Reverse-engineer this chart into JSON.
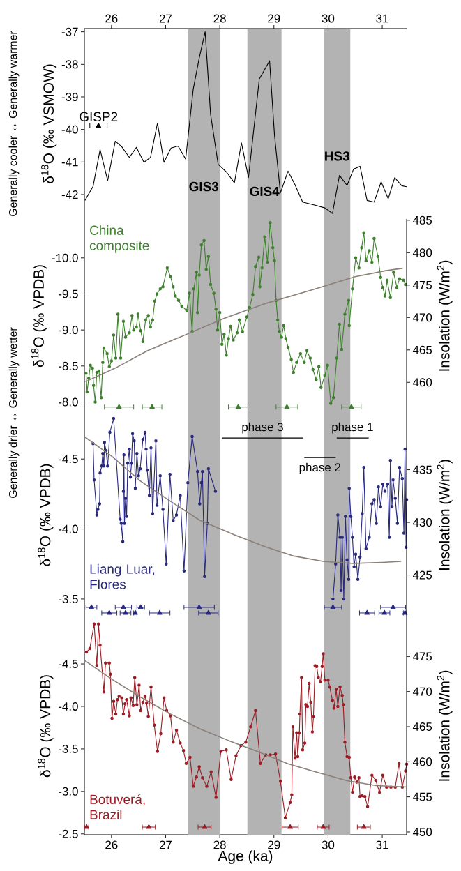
{
  "chart_data": [
    {
      "type": "line",
      "ylabel": "δ$^{18}$O (‰ VSMOW)",
      "xlim": [
        25.5,
        31.45
      ],
      "xticks": [
        26,
        27,
        28,
        29,
        30,
        31
      ],
      "ylim": [
        -42.75,
        -36.9
      ],
      "yticks": [
        -37,
        -38,
        -39,
        -40,
        -41,
        -42
      ],
      "annotations": [
        "Generally cooler ↔ Generally warmer",
        {
          "text": "GISP2",
          "x": 25.76,
          "y": -39.89
        }
      ],
      "bands": [
        {
          "axis": "x",
          "from": 27.41,
          "to": 28.0,
          "label": "GIS3",
          "color": "#b3b3b3"
        },
        {
          "axis": "x",
          "from": 28.51,
          "to": 29.14,
          "label": "GIS4",
          "color": "#b3b3b3"
        },
        {
          "axis": "x",
          "from": 29.92,
          "to": 30.41,
          "label": "HS3",
          "color": "#b3b3b3"
        }
      ],
      "series": [
        {
          "color": "#000000",
          "marker": "none",
          "x": [
            25.51,
            25.66,
            25.79,
            25.93,
            26.07,
            26.19,
            26.33,
            26.46,
            26.6,
            26.72,
            26.85,
            26.97,
            27.1,
            27.23,
            27.37,
            27.51,
            27.62,
            27.73,
            27.83,
            27.97,
            28.13,
            28.27,
            28.4,
            28.53,
            28.73,
            28.92,
            29.01,
            29.12,
            29.26,
            29.39,
            29.53,
            29.75,
            29.94,
            30.08,
            30.21,
            30.35,
            30.47,
            30.59,
            30.72,
            30.85,
            30.98,
            31.11,
            31.23,
            31.36,
            31.45
          ],
          "values": [
            -42.18,
            -41.75,
            -40.62,
            -41.57,
            -40.36,
            -40.53,
            -40.86,
            -40.55,
            -41.01,
            -40.86,
            -39.8,
            -41.01,
            -40.57,
            -40.51,
            -40.91,
            -38.76,
            -37.81,
            -37.0,
            -39.53,
            -41.07,
            -41.32,
            -41.64,
            -40.41,
            -41.48,
            -38.45,
            -37.89,
            -40.16,
            -41.95,
            -41.28,
            -41.7,
            -42.23,
            -42.32,
            -42.41,
            -42.58,
            -41.41,
            -41.72,
            -41.22,
            -41.13,
            -42.18,
            -42.23,
            -41.61,
            -42.13,
            -41.48,
            -41.73,
            -41.76
          ]
        },
        {
          "type": "scatter",
          "color": "#000000",
          "marker": "triangle",
          "x": [
            25.76
          ],
          "values": [
            -39.89
          ],
          "xerrors": [
            0.16
          ]
        }
      ]
    },
    {
      "type": "line",
      "ylabel": "δ$^{18}$O (‰ VPDB)",
      "y2label": "Insolation (W/m$^{2}$)",
      "xlim": [
        25.5,
        31.45
      ],
      "ylim": [
        -7.85,
        -10.54
      ],
      "yticks": [
        {
          "value": -10,
          "label": "-10.0"
        },
        -9.5,
        {
          "value": -9,
          "label": "-9.0"
        },
        -8.5,
        {
          "value": -8,
          "label": "-8.0"
        }
      ],
      "y2lim": [
        455.3,
        485.2
      ],
      "y2ticks": [
        460,
        465,
        470,
        475,
        480,
        485
      ],
      "tick_labels": "y",
      "bands": [
        {
          "axis": "x",
          "from": 27.41,
          "to": 28.0,
          "color": "#b3b3b3"
        },
        {
          "axis": "x",
          "from": 28.51,
          "to": 29.14,
          "color": "#b3b3b3"
        },
        {
          "axis": "x",
          "from": 29.92,
          "to": 30.41,
          "color": "#b3b3b3"
        }
      ],
      "series": [
        {
          "name": "China composite",
          "color": "#3e7f2e",
          "marker": "circle",
          "x": [
            25.53,
            25.55,
            25.58,
            25.61,
            25.65,
            25.67,
            25.7,
            25.73,
            25.77,
            25.81,
            25.84,
            25.86,
            25.92,
            25.96,
            26.0,
            26.04,
            26.08,
            26.12,
            26.17,
            26.22,
            26.26,
            26.33,
            26.38,
            26.41,
            26.46,
            26.49,
            26.54,
            26.58,
            26.63,
            26.68,
            26.72,
            26.76,
            26.8,
            26.84,
            26.9,
            26.95,
            27.03,
            27.09,
            27.14,
            27.18,
            27.24,
            27.3,
            27.39,
            27.44,
            27.49,
            27.52,
            27.57,
            27.59,
            27.62,
            27.66,
            27.71,
            27.75,
            27.79,
            27.83,
            27.89,
            27.93,
            27.96,
            28.0,
            28.04,
            28.08,
            28.12,
            28.16,
            28.2,
            28.25,
            28.32,
            28.36,
            28.42,
            28.5,
            28.55,
            28.61,
            28.66,
            28.72,
            28.74,
            28.78,
            28.83,
            28.88,
            28.93,
            28.98,
            29.01,
            29.04,
            29.07,
            29.1,
            29.14,
            29.18,
            29.22,
            29.26,
            29.32,
            29.36,
            29.42,
            29.49,
            29.56,
            29.61,
            29.67,
            29.72,
            29.78,
            29.83,
            29.87,
            29.94,
            29.99,
            30.05,
            30.1,
            30.16,
            30.21,
            30.25,
            30.31,
            30.38,
            30.39,
            30.45,
            30.51,
            30.57,
            30.62,
            30.66,
            30.7,
            30.76,
            30.81,
            30.85,
            30.92,
            30.97,
            31.01,
            31.05,
            31.09,
            31.15,
            31.21,
            31.27,
            31.32,
            31.39,
            31.43
          ],
          "values": [
            -8.4,
            -8.14,
            -8.33,
            -8.51,
            -8.47,
            -8.23,
            -8.0,
            -8.41,
            -8.43,
            -8.06,
            -8.55,
            -8.75,
            -8.67,
            -8.49,
            -8.57,
            -8.93,
            -8.61,
            -9.22,
            -8.61,
            -9.12,
            -8.9,
            -8.96,
            -9.2,
            -9.0,
            -9.04,
            -9.22,
            -8.99,
            -8.84,
            -9.14,
            -9.2,
            -9.04,
            -9.14,
            -9.4,
            -9.5,
            -9.57,
            -9.6,
            -9.86,
            -9.74,
            -9.6,
            -9.47,
            -9.41,
            -9.33,
            -9.27,
            -9.51,
            -8.98,
            -9.57,
            -9.8,
            -9.24,
            -9.76,
            -10.18,
            -10.24,
            -9.84,
            -10.02,
            -9.63,
            -9.51,
            -9.29,
            -9.0,
            -9.24,
            -8.8,
            -8.94,
            -8.65,
            -8.88,
            -9.05,
            -8.86,
            -8.96,
            -9.14,
            -8.98,
            -9.18,
            -9.31,
            -9.49,
            -9.88,
            -10.01,
            -9.6,
            -9.86,
            -10.29,
            -9.94,
            -10.49,
            -10.14,
            -9.96,
            -9.41,
            -9.14,
            -8.98,
            -8.9,
            -9.06,
            -8.88,
            -8.76,
            -8.59,
            -8.41,
            -8.55,
            -8.67,
            -8.55,
            -8.71,
            -8.61,
            -8.45,
            -8.31,
            -8.49,
            -8.2,
            -8.37,
            -8.51,
            -7.98,
            -8.06,
            -8.61,
            -9.08,
            -8.73,
            -9.22,
            -9.41,
            -9.06,
            -9.57,
            -10.0,
            -9.86,
            -10.14,
            -10.35,
            -9.96,
            -10.1,
            -9.94,
            -10.27,
            -10.02,
            -9.73,
            -9.59,
            -9.47,
            -9.69,
            -9.45,
            -9.8,
            -9.59,
            -9.71,
            -9.69,
            -9.63
          ]
        },
        {
          "type": "line",
          "axis": "y2",
          "color": "#8b7f78",
          "marker": "none",
          "x": [
            25.52,
            26.07,
            26.67,
            27.44,
            28.09,
            28.86,
            29.68,
            30.5,
            31.05,
            31.38
          ],
          "values": [
            460.1,
            462.2,
            464.9,
            467.6,
            469.9,
            472.2,
            474.2,
            476.3,
            477.2,
            477.6
          ]
        },
        {
          "type": "scatter",
          "color": "#3e7f2e",
          "marker": "triangle",
          "x": [
            26.14,
            26.75,
            28.34,
            29.24,
            30.43
          ],
          "values": [
            -7.93,
            -7.93,
            -7.93,
            -7.93,
            -7.93
          ],
          "xerrors": [
            0.27,
            0.18,
            0.18,
            0.2,
            0.18
          ]
        }
      ]
    },
    {
      "type": "line",
      "ylabel": "δ$^{18}$O (‰ VPDB)",
      "y2label": "Insolation (W/m$^{2}$)",
      "xlim": [
        25.5,
        31.45
      ],
      "ylim": [
        -3.37,
        -4.83
      ],
      "yticks": [
        -4.5,
        {
          "value": -4,
          "label": "-4.0"
        },
        -3.5
      ],
      "y2lim": [
        421,
        440.4
      ],
      "y2ticks": [
        425,
        430,
        435
      ],
      "tick_labels": "y",
      "annotations": [
        "Generally drier ↔ Generally wetter",
        {
          "text": "phase 3",
          "x": 28.79,
          "y": -4.65
        },
        {
          "text": "phase 2",
          "x": 29.85,
          "y": -4.51
        },
        {
          "text": "phase 1",
          "x": 30.45,
          "y": -4.65
        }
      ],
      "bands": [
        {
          "axis": "x",
          "from": 27.41,
          "to": 28.0,
          "color": "#b3b3b3"
        },
        {
          "axis": "x",
          "from": 28.51,
          "to": 29.14,
          "color": "#b3b3b3"
        },
        {
          "axis": "x",
          "from": 29.92,
          "to": 30.41,
          "color": "#b3b3b3"
        }
      ],
      "series": [
        {
          "name": "Liang Luar, Flores",
          "color": "#28287c",
          "marker": "circle",
          "x": [
            25.66,
            25.68,
            25.73,
            25.75,
            25.78,
            25.79,
            25.82,
            25.84,
            25.86,
            25.87,
            25.9,
            25.93,
            25.97,
            26.04,
            26.16,
            26.18,
            26.21,
            26.22,
            26.23,
            26.24,
            26.26,
            26.28,
            26.3,
            26.33,
            26.35,
            26.37,
            26.39,
            26.42,
            26.44,
            26.47,
            26.5,
            26.53,
            26.58,
            26.62,
            26.64,
            26.66,
            26.7,
            26.73,
            26.76,
            26.82,
            26.84,
            26.9,
            26.95,
            27.01,
            27.08,
            27.14,
            27.2,
            27.27,
            27.34,
            27.41,
            27.49,
            27.59,
            27.63,
            27.66,
            27.68,
            27.72,
            27.77,
            27.79,
            27.92,
            29.0,
            30.09,
            30.14,
            30.18,
            30.22,
            30.24,
            30.26,
            30.29,
            30.32,
            30.35,
            30.38,
            30.39,
            30.42,
            30.45,
            30.48,
            30.51,
            30.55,
            30.59,
            30.63,
            30.66,
            30.7,
            30.76,
            30.81,
            30.85,
            30.89,
            30.93,
            30.97,
            31.01,
            31.05,
            31.1,
            31.13,
            31.15,
            31.18,
            31.2,
            31.24,
            31.28,
            31.32,
            31.37,
            31.4,
            31.42,
            31.44,
            31.45
          ],
          "values": [
            -4.61,
            -4.35,
            -4.1,
            -4.14,
            -4.18,
            -4.4,
            -4.45,
            -4.54,
            -4.45,
            -4.62,
            -4.56,
            -4.45,
            -4.69,
            -4.79,
            -4.07,
            -4.04,
            -3.91,
            -4.27,
            -4.53,
            -4.04,
            -4.22,
            -4.09,
            -4.47,
            -4.57,
            -4.37,
            -4.47,
            -4.68,
            -4.63,
            -4.29,
            -4.54,
            -4.38,
            -4.43,
            -4.64,
            -4.69,
            -4.57,
            -4.42,
            -4.24,
            -4.58,
            -4.11,
            -4.63,
            -4.17,
            -4.38,
            -4.14,
            -3.75,
            -4.39,
            -4.06,
            -4.1,
            -4.24,
            -3.7,
            -4.33,
            -4.66,
            -4.41,
            -4.18,
            -4.33,
            -4.41,
            -3.66,
            -4.04,
            -4.43,
            -4.27,
            null,
            -3.5,
            -3.75,
            -4.1,
            -3.94,
            -3.56,
            -3.94,
            -3.5,
            -4.09,
            -3.78,
            -3.64,
            -4.29,
            -4.09,
            -3.94,
            -3.73,
            -3.82,
            -3.64,
            -3.8,
            -4.11,
            -4.44,
            -3.86,
            -3.94,
            -4.18,
            -4.21,
            -4.04,
            -4.3,
            -4.16,
            -4.32,
            -4.27,
            -4.32,
            -3.94,
            -4.49,
            -4.16,
            -4.35,
            -4.22,
            -4.04,
            -4.44,
            -4.36,
            -3.97,
            -4.57,
            -3.87,
            -4.21
          ]
        },
        {
          "type": "line",
          "axis": "y2",
          "color": "#8b7f78",
          "marker": "none",
          "x": [
            25.51,
            26.0,
            26.54,
            27.09,
            27.63,
            28.28,
            28.83,
            29.37,
            29.91,
            30.46,
            31.0,
            31.35
          ],
          "values": [
            438.1,
            436.3,
            433.9,
            432.0,
            430.2,
            428.8,
            427.7,
            426.8,
            426.3,
            426.1,
            426.2,
            426.3
          ]
        },
        {
          "type": "scatter",
          "color": "#28287c",
          "marker": "triangle",
          "x": [
            25.63,
            26.22,
            26.54,
            27.62,
            30.09,
            31.2
          ],
          "values": [
            -3.44,
            -3.44,
            -3.44,
            -3.44,
            -3.44,
            -3.44
          ],
          "xerrors": [
            0.1,
            0.15,
            0.07,
            0.28,
            0.16,
            0.23
          ]
        },
        {
          "type": "scatter",
          "color": "#28287c",
          "marker": "triangle",
          "x": [
            25.96,
            26.26,
            26.44,
            26.89,
            27.79,
            30.72,
            31.04,
            31.42
          ],
          "values": [
            -3.4,
            -3.4,
            -3.4,
            -3.4,
            -3.4,
            -3.4,
            -3.4,
            -3.4
          ],
          "xerrors": [
            0.14,
            0.1,
            0.03,
            0.19,
            0.18,
            0.14,
            0.1,
            0.03
          ]
        },
        {
          "type": "line",
          "color": "#000000",
          "marker": "none",
          "x": [
            28.04,
            29.54,
            29.545,
            29.56,
            30.14,
            30.15,
            30.16,
            30.75
          ],
          "values": [
            -4.65,
            -4.65,
            null,
            -4.51,
            -4.51,
            null,
            -4.65,
            -4.65
          ]
        }
      ]
    },
    {
      "type": "line",
      "xlabel": "Age (ka)",
      "ylabel": "δ$^{18}$O (‰ VPDB)",
      "y2label": "Insolation (W/m$^{2}$)",
      "xlim": [
        25.5,
        31.45
      ],
      "xticks": [
        26,
        27,
        28,
        29,
        30,
        31
      ],
      "ylim": [
        -2.49,
        -5.05
      ],
      "yticks": [
        -4.5,
        {
          "value": -4,
          "label": "-4.0"
        },
        -3.5,
        {
          "value": -3,
          "label": "-3.0"
        },
        -2.5
      ],
      "y2lim": [
        449.6,
        480.6
      ],
      "y2ticks": [
        450,
        455,
        460,
        465,
        470,
        475
      ],
      "bands": [
        {
          "axis": "x",
          "from": 27.41,
          "to": 28.0,
          "color": "#b3b3b3"
        },
        {
          "axis": "x",
          "from": 28.51,
          "to": 29.14,
          "color": "#b3b3b3"
        },
        {
          "axis": "x",
          "from": 29.92,
          "to": 30.41,
          "color": "#b3b3b3"
        }
      ],
      "series": [
        {
          "name": "Botuverá, Brazil",
          "color": "#9b1c24",
          "marker": "circle",
          "x": [
            25.54,
            25.6,
            25.68,
            25.73,
            25.76,
            25.79,
            25.86,
            25.89,
            25.96,
            25.98,
            26.01,
            26.04,
            26.08,
            26.11,
            26.14,
            26.19,
            26.22,
            26.25,
            26.28,
            26.33,
            26.36,
            26.4,
            26.43,
            26.47,
            26.51,
            26.54,
            26.58,
            26.62,
            26.65,
            26.68,
            26.73,
            26.79,
            26.85,
            26.91,
            26.97,
            27.02,
            27.09,
            27.14,
            27.2,
            27.27,
            27.33,
            27.38,
            27.45,
            27.51,
            27.57,
            27.62,
            27.68,
            27.76,
            27.84,
            27.93,
            28.02,
            28.12,
            28.21,
            28.3,
            28.39,
            28.48,
            28.57,
            28.66,
            28.75,
            28.85,
            28.93,
            29.03,
            29.12,
            29.21,
            29.3,
            29.33,
            29.35,
            29.39,
            29.42,
            29.44,
            29.47,
            29.48,
            29.51,
            29.53,
            29.57,
            29.59,
            29.62,
            29.65,
            29.68,
            29.71,
            29.73,
            29.76,
            29.79,
            29.82,
            29.86,
            29.89,
            29.91,
            29.94,
            30.0,
            30.03,
            30.08,
            30.11,
            30.15,
            30.18,
            30.22,
            30.26,
            30.28,
            30.31,
            30.35,
            30.39,
            30.42,
            30.45,
            30.49,
            30.53,
            30.57,
            30.59,
            30.63,
            30.68,
            30.73,
            30.81,
            30.88,
            30.95,
            31.01,
            31.08,
            31.16,
            31.24,
            31.31,
            31.37,
            31.43,
            31.45
          ],
          "values": [
            -4.64,
            -4.68,
            -4.97,
            -4.48,
            -4.97,
            -4.72,
            -4.17,
            -4.51,
            -4.51,
            -4.38,
            -3.86,
            -4.06,
            -3.91,
            -4.08,
            -4.12,
            -4.1,
            -3.91,
            -4.03,
            -4.08,
            -3.89,
            -4.1,
            -4.01,
            -4.34,
            -4.02,
            -4.25,
            -3.95,
            -4.05,
            -4.12,
            -4.04,
            -3.88,
            -4.23,
            -3.78,
            -3.47,
            -3.68,
            -4.1,
            -3.95,
            -3.89,
            -3.58,
            -3.72,
            -3.57,
            -3.48,
            -3.33,
            -3.4,
            -3.06,
            -3.17,
            -3.29,
            -3.16,
            -3.06,
            -3.23,
            -2.93,
            -3.47,
            -3.49,
            -3.14,
            -3.42,
            -3.54,
            -3.58,
            -3.76,
            -3.95,
            -3.33,
            -3.43,
            -3.43,
            -3.44,
            -3.12,
            -2.69,
            -2.87,
            -2.96,
            -3.76,
            -3.39,
            -3.69,
            -3.41,
            -3.69,
            -3.91,
            -4.34,
            -3.49,
            -3.57,
            -4.02,
            -4.0,
            -4.27,
            -4.05,
            -3.7,
            -3.88,
            -4.48,
            -4.47,
            -4.34,
            -4.29,
            -4.47,
            -4.62,
            -4.31,
            -4.31,
            -4.23,
            -4.07,
            -3.98,
            -4.2,
            -4.0,
            -4.23,
            -4.13,
            -4.02,
            -3.58,
            -3.41,
            -3.4,
            -3.16,
            -2.99,
            -3.17,
            -3.11,
            -3.16,
            -2.94,
            -2.95,
            -2.94,
            -2.82,
            -3.19,
            -3.13,
            -2.99,
            -3.19,
            -3.05,
            -3.05,
            -3.05,
            -3.33,
            -3.05,
            -3.24,
            -3.32
          ]
        },
        {
          "type": "line",
          "axis": "y2",
          "color": "#8b7f78",
          "marker": "none",
          "x": [
            25.51,
            26.0,
            26.54,
            27.09,
            27.63,
            28.17,
            28.72,
            29.26,
            29.8,
            30.35,
            30.89,
            31.45
          ],
          "values": [
            474.4,
            471.8,
            469.2,
            466.8,
            464.7,
            463.0,
            461.4,
            459.7,
            458.5,
            457.3,
            456.6,
            456.4
          ]
        },
        {
          "type": "scatter",
          "color": "#9b1c24",
          "marker": "triangle",
          "x": [
            25.54,
            26.69,
            27.72,
            29.3,
            29.91,
            30.66
          ],
          "values": [
            -2.58,
            -2.58,
            -2.58,
            -2.58,
            -2.58,
            -2.58
          ],
          "xerrors": [
            0.04,
            0.12,
            0.12,
            0.15,
            0.11,
            0.12
          ]
        }
      ]
    }
  ]
}
